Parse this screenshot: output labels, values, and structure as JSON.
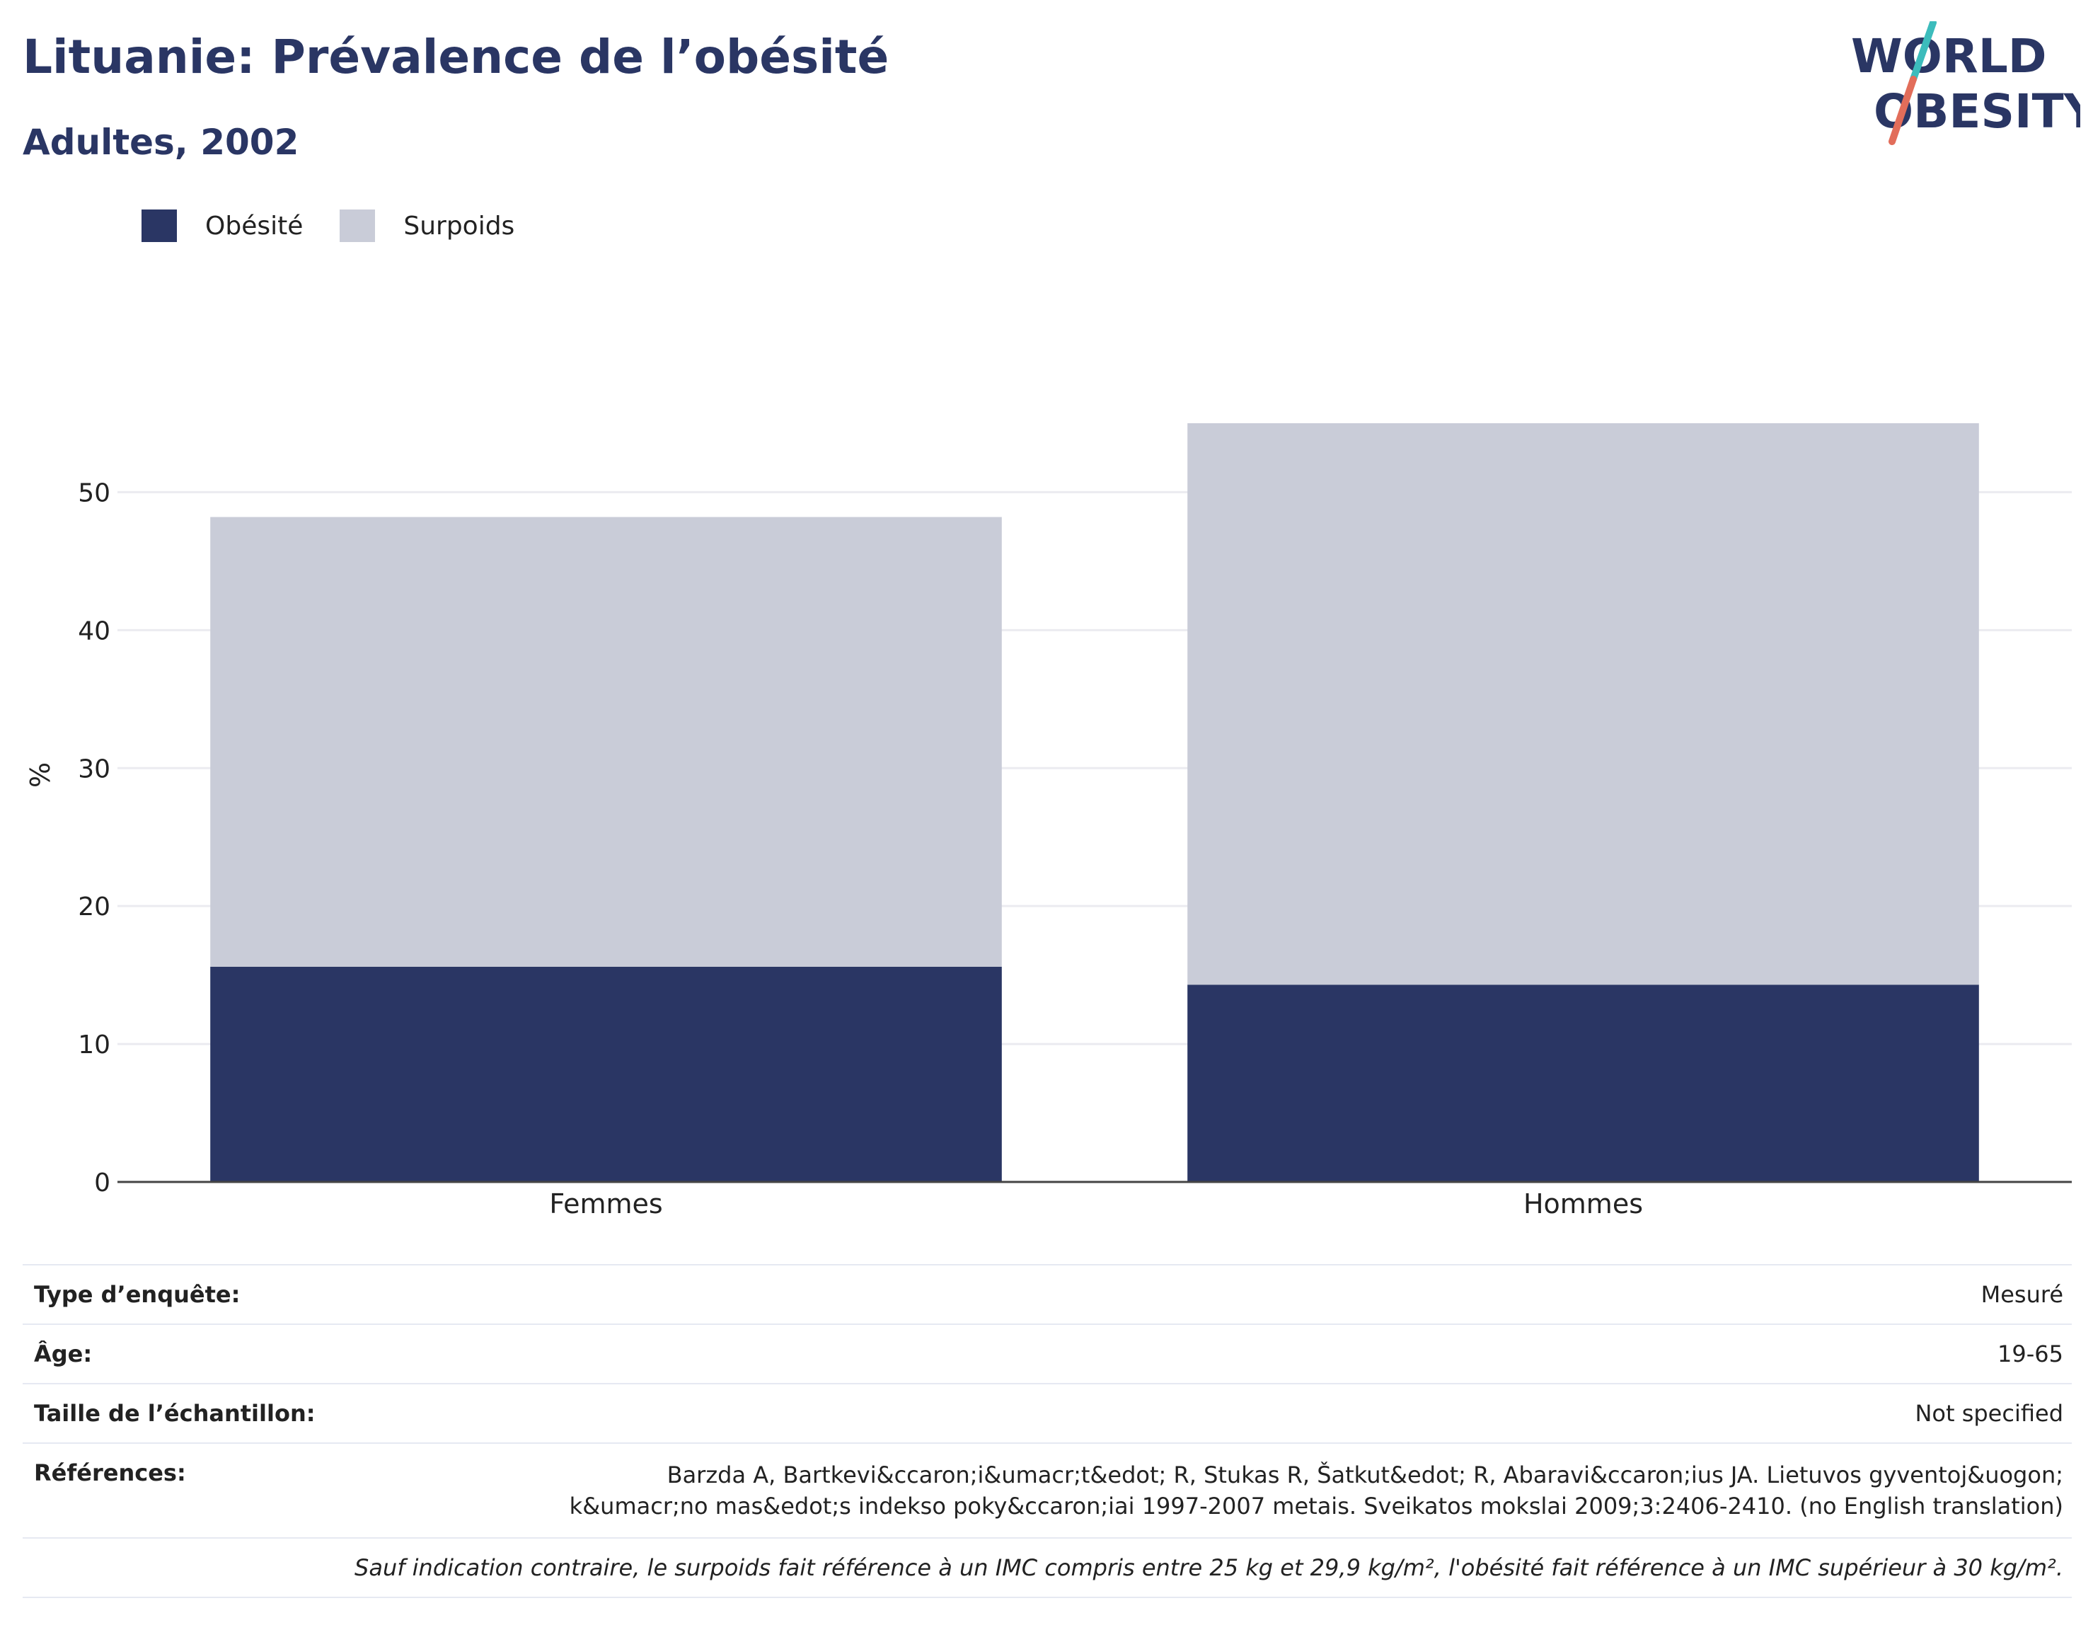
{
  "header": {
    "title": "Lituanie: Prévalence de l’obésité",
    "subtitle": "Adultes, 2002"
  },
  "logo": {
    "line1": "WORLD",
    "line2": "OBESITY",
    "colors": {
      "text": "#2a3664",
      "slash_top": "#3cbcbc",
      "slash_bottom": "#e26d5a"
    }
  },
  "legend": {
    "items": [
      {
        "label": "Obésité",
        "color": "#2a3664"
      },
      {
        "label": "Surpoids",
        "color": "#c9ccd8"
      }
    ]
  },
  "chart_data": {
    "type": "bar",
    "stacked": true,
    "categories": [
      "Femmes",
      "Hommes"
    ],
    "series": [
      {
        "name": "Obésité",
        "color": "#2a3664",
        "values": [
          15.6,
          14.3
        ]
      },
      {
        "name": "Surpoids",
        "color": "#c9ccd8",
        "values": [
          32.6,
          40.7
        ]
      }
    ],
    "title": "",
    "xlabel": "",
    "ylabel": "%",
    "ylim": [
      0,
      59
    ],
    "yticks": [
      0,
      10,
      20,
      30,
      40,
      50
    ],
    "grid": true,
    "legend_position": "top-left"
  },
  "info": {
    "rows": [
      {
        "key": "Type d’enquête:",
        "value": "Mesuré"
      },
      {
        "key": "Âge:",
        "value": "19-65"
      },
      {
        "key": "Taille de l’échantillon:",
        "value": "Not specified"
      },
      {
        "key": "Références:",
        "value": "Barzda A, Bartkevi&ccaron;i&umacr;t&edot; R, Stukas R, Šatkut&edot; R, Abaravi&ccaron;ius JA. Lietuvos gyventoj&uogon; k&umacr;no mas&edot;s indekso poky&ccaron;iai 1997-2007 metais. Sveikatos mokslai 2009;3:2406-2410. (no English translation)"
      }
    ],
    "note": "Sauf indication contraire, le surpoids fait référence à un IMC compris entre 25 kg et 29,9 kg/m², l'obésité fait référence à un IMC supérieur à 30 kg/m²."
  }
}
